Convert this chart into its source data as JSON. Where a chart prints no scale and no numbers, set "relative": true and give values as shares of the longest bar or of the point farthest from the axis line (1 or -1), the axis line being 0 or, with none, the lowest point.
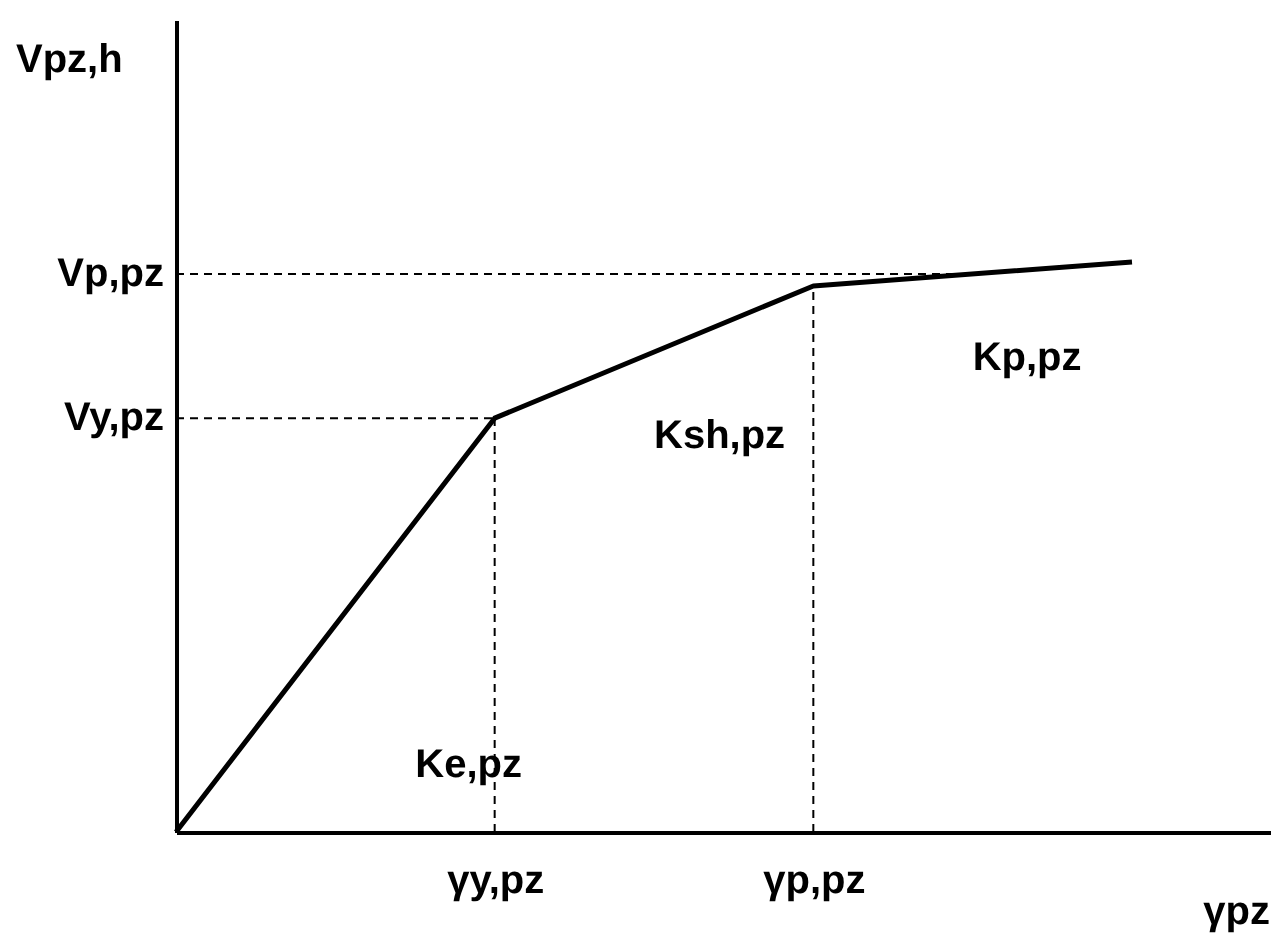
{
  "chart_data": {
    "type": "line",
    "relative": true,
    "xlabel": "γpz",
    "ylabel": "Vpz,h",
    "categories": [
      null,
      "γy,pz",
      "γp,pz",
      null
    ],
    "series": [
      {
        "color": "#000000",
        "values": [
          0,
          0.726,
          0.958,
          1.0
        ]
      }
    ],
    "ref_lines": [
      {
        "axis": "y",
        "value": 0.726,
        "label": "Vy,pz",
        "color": "#000000",
        "line_style": "dashed"
      },
      {
        "axis": "y",
        "value": 0.979,
        "label": "Vp,pz",
        "color": "#000000",
        "line_style": "dashed"
      },
      {
        "axis": "x",
        "value": "γy,pz",
        "color": "#000000",
        "line_style": "dashed"
      },
      {
        "axis": "x",
        "value": "γp,pz",
        "color": "#000000",
        "line_style": "dashed"
      }
    ],
    "annotations": [
      "Ke,pz",
      "Ksh,pz",
      "Kp,pz"
    ],
    "grid": false,
    "marker": "none",
    "line_style": "solid"
  }
}
